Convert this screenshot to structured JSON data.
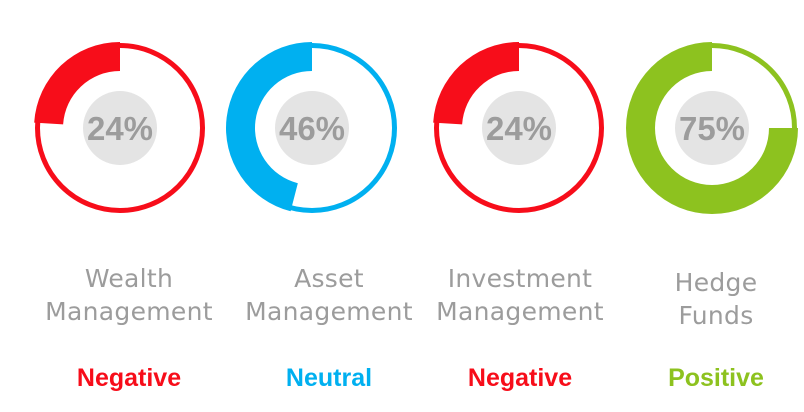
{
  "chart_data": {
    "type": "donut",
    "items": [
      {
        "label_lines": [
          "Wealth",
          "Management"
        ],
        "value": 24,
        "value_label": "24%",
        "sentiment": "Negative",
        "color": "#f70d1a"
      },
      {
        "label_lines": [
          "Asset",
          "Management"
        ],
        "value": 46,
        "value_label": "46%",
        "sentiment": "Neutral",
        "color": "#00b0f0"
      },
      {
        "label_lines": [
          "Investment",
          "Management"
        ],
        "value": 24,
        "value_label": "24%",
        "sentiment": "Negative",
        "color": "#f70d1a"
      },
      {
        "label_lines": [
          "Hedge",
          "Funds"
        ],
        "value": 75,
        "value_label": "75%",
        "sentiment": "Positive",
        "color": "#8dc21f"
      }
    ]
  },
  "colors": {
    "center_disc": "#e4e4e4",
    "value_text": "#9c9c9c",
    "label_text": "#9c9c9c"
  }
}
